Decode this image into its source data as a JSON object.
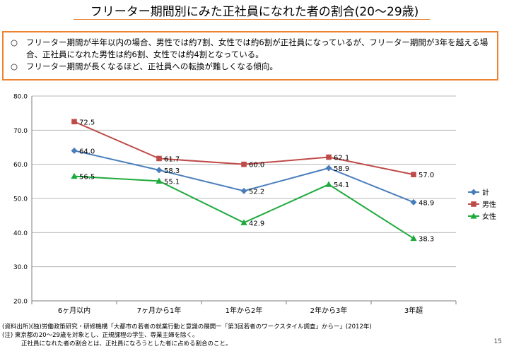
{
  "title": "フリーター期間別にみた正社員になれた者の割合(20〜29歳)",
  "summary": {
    "bullet": "○",
    "lines": [
      "フリーター期間が半年以内の場合、男性では約7割、女性では約6割が正社員になっているが、フリーター期間が3年を越える場合、正社員になれた男性は約6割、女性では約4割となっている。",
      "フリーター期間が長くなるほど、正社員への転換が難しくなる傾向。"
    ]
  },
  "chart_data": {
    "type": "line",
    "categories": [
      "6ヶ月以内",
      "7ヶ月から1年",
      "1年から2年",
      "2年から3年",
      "3年超"
    ],
    "ylim": [
      20.0,
      80.0
    ],
    "yticks": [
      "20.0",
      "30.0",
      "40.0",
      "50.0",
      "60.0",
      "70.0",
      "80.0"
    ],
    "grid": "horizontal",
    "legend_position": "right",
    "series": [
      {
        "name": "計",
        "color": "#4a7ebb",
        "marker": "diamond",
        "values": [
          64.0,
          58.3,
          52.2,
          58.9,
          48.9
        ],
        "labels": [
          "64.0",
          "58.3",
          "52.2",
          "58.9",
          "48.9"
        ]
      },
      {
        "name": "男性",
        "color": "#be4b48",
        "marker": "square",
        "values": [
          72.5,
          61.7,
          60.0,
          62.1,
          57.0
        ],
        "labels": [
          "72.5",
          "61.7",
          "60.0",
          "62.1",
          "57.0"
        ]
      },
      {
        "name": "女性",
        "color": "#1daa3b",
        "marker": "triangle",
        "values": [
          56.5,
          55.1,
          42.9,
          54.1,
          38.3
        ],
        "labels": [
          "56.5",
          "55.1",
          "42.9",
          "54.1",
          "38.3"
        ]
      }
    ]
  },
  "footnotes": {
    "source": "(資料出所)(独)労働政策研究・研修機構「大都市の若者の就業行動と意識の展開ー「第3回若者のワークスタイル調査」からー」(2012年)",
    "note1": "(注)  東京都の20〜29歳を対象とし、正規課程の学生、専業主婦を除く。",
    "note2": "正社員になれた者の割合とは、正社員になろうとした者に占める割合のこと。"
  },
  "page_number": "15"
}
